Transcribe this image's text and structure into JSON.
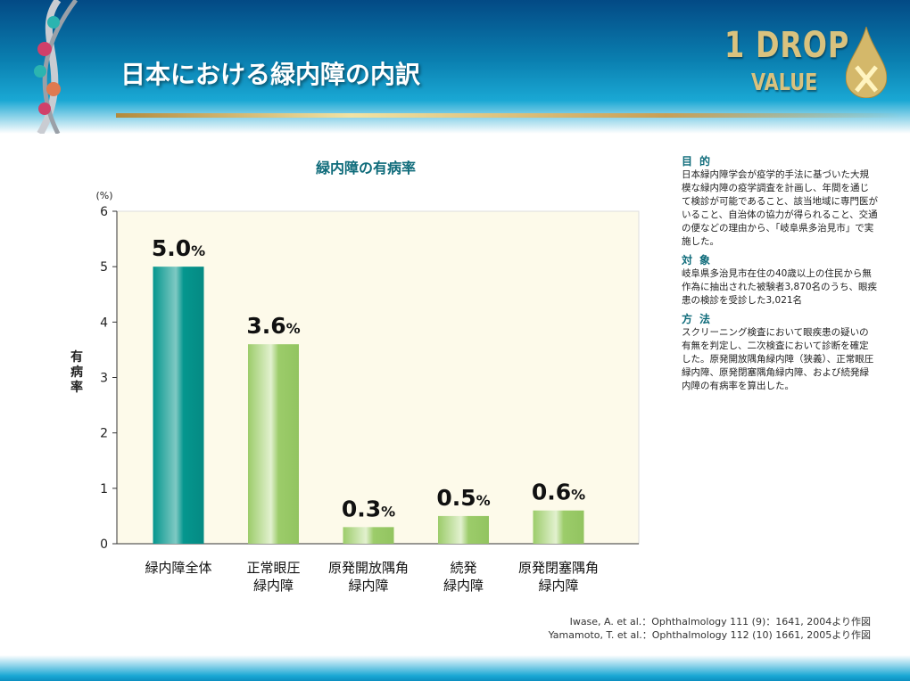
{
  "header": {
    "title": "日本における緑内障の内訳",
    "logo_line1": "1 DROP",
    "logo_line2": "VALUE"
  },
  "colors": {
    "accent": "#0e6b7a",
    "bar_total": "#05968e",
    "bar_other": "#9ccc6a",
    "plot_bg": "#fdfaea"
  },
  "chart_data": {
    "type": "bar",
    "title": "緑内障の有病率",
    "ylabel": "有病率",
    "yunit": "(%)",
    "ylim": [
      0,
      6
    ],
    "yticks": [
      "0",
      "1",
      "2",
      "3",
      "4",
      "5",
      "6"
    ],
    "categories": [
      "緑内障全体",
      "正常眼圧\n緑内障",
      "原発開放隅角\n緑内障",
      "続発\n緑内障",
      "原発閉塞隅角\n緑内障"
    ],
    "values": [
      5.0,
      3.6,
      0.3,
      0.5,
      0.6
    ],
    "data_labels": [
      "5.0",
      "3.6",
      "0.3",
      "0.5",
      "0.6"
    ],
    "label_suffix": "%",
    "grid": false
  },
  "side": {
    "sections": [
      {
        "heading": "目的",
        "body": "日本緑内障学会が疫学的手法に基づいた大規模な緑内障の疫学調査を計画し、年間を通じて検診が可能であること、該当地域に専門医がいること、自治体の協力が得られること、交通の便などの理由から、「岐阜県多治見市」で実施した。"
      },
      {
        "heading": "対象",
        "body": "岐阜県多治見市在住の40歳以上の住民から無作為に抽出された被験者3,870名のうち、眼疾患の検診を受診した3,021名"
      },
      {
        "heading": "方法",
        "body": "スクリーニング検査において眼疾患の疑いの有無を判定し、二次検査において診断を確定した。原発開放隅角緑内障（狭義）、正常眼圧緑内障、原発閉塞隅角緑内障、および続発緑内障の有病率を算出した。"
      }
    ]
  },
  "references": [
    "Iwase, A. et al.：Ophthalmology 111 (9)：1641, 2004より作図",
    "Yamamoto, T. et al.：Ophthalmology 112 (10) 1661, 2005より作図"
  ]
}
